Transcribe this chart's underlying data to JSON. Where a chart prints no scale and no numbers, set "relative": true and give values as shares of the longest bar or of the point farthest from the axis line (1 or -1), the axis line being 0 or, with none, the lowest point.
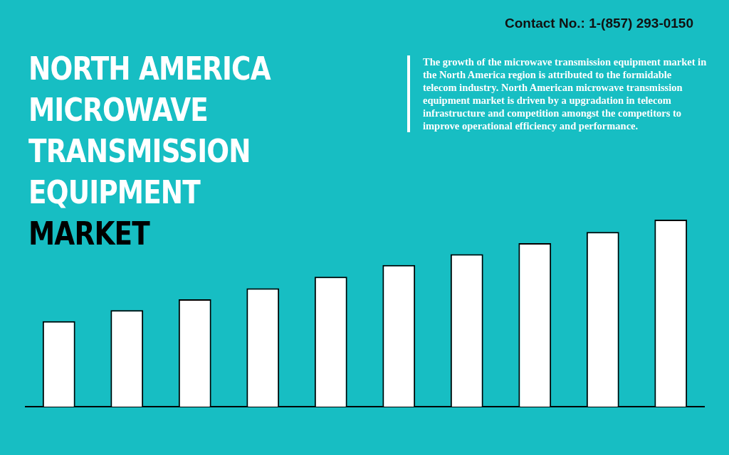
{
  "chart_data": {
    "type": "bar",
    "title": "NORTH AMERICA MICROWAVE TRANSMISSION EQUIPMENT MARKET",
    "categories": [
      null,
      null,
      null,
      null,
      null,
      null,
      null,
      null,
      null,
      null
    ],
    "values": [
      0.457,
      0.516,
      0.574,
      0.633,
      0.695,
      0.758,
      0.816,
      0.875,
      0.934,
      1
    ],
    "color": "#ffffff",
    "relative": true,
    "annotations": [
      "Contact No.: 1-(857) 293-0150",
      "The growth of the microwave transmission equipment market in the North America region is attributed to the formidable telecom industry. North American microwave transmission equipment market is driven by a upgradation in telecom infrastructure and competition amongst the competitors to improve operational efficiency and performance."
    ]
  }
}
